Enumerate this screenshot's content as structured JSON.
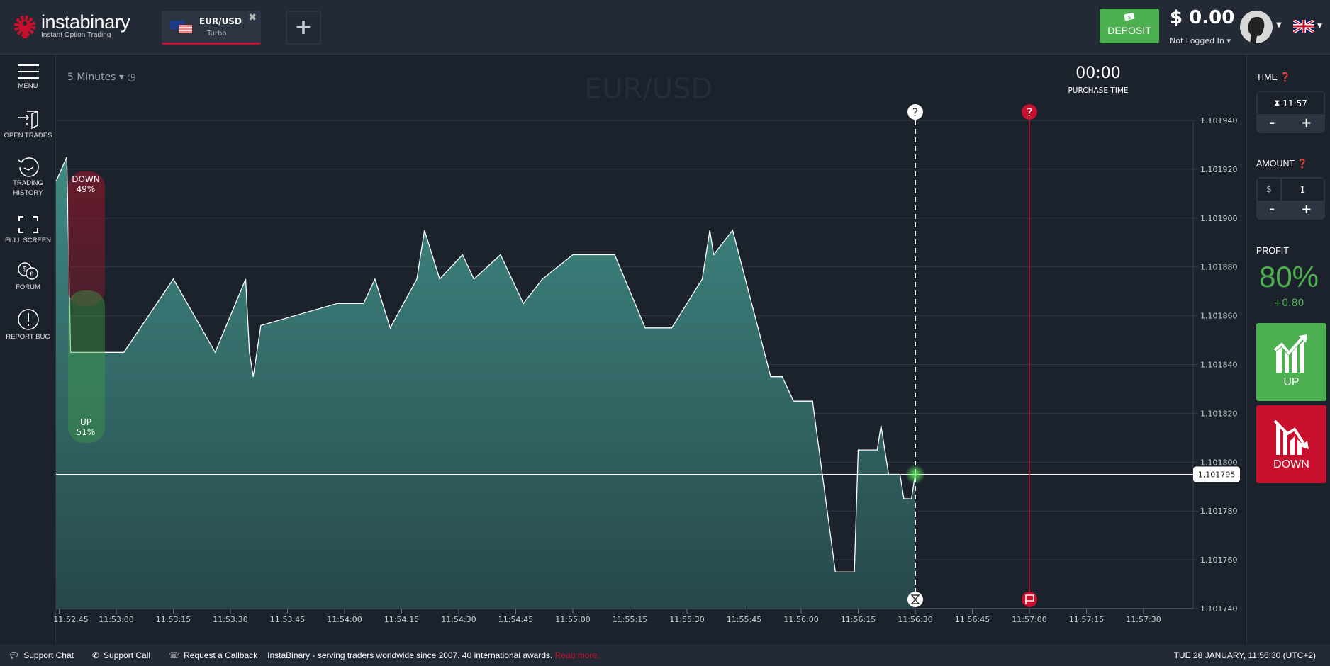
{
  "header": {
    "logo_name": "instabinary",
    "logo_tagline": "Instant Option Trading",
    "tab": {
      "pair": "EUR/USD",
      "type": "Turbo"
    },
    "deposit_label": "DEPOSIT",
    "balance": "$ 0.00",
    "login_status": "Not Logged In"
  },
  "sidebar": {
    "items": [
      {
        "label": "MENU",
        "icon": "hamburger-icon"
      },
      {
        "label": "OPEN TRADES",
        "icon": "door-enter-icon"
      },
      {
        "label": "TRADING HISTORY",
        "icon": "history-clock-icon"
      },
      {
        "label": "FULL SCREEN",
        "icon": "fullscreen-icon"
      },
      {
        "label": "FORUM",
        "icon": "forum-bubbles-icon"
      },
      {
        "label": "REPORT BUG",
        "icon": "exclamation-circle-icon"
      }
    ]
  },
  "chart": {
    "period": "5 Minutes",
    "watermark": "EUR/USD",
    "purchase_time": "00:00",
    "purchase_time_label": "PURCHASE TIME",
    "sentiment": {
      "down_label": "DOWN",
      "down_pct": "49%",
      "up_label": "UP",
      "up_pct": "51%"
    },
    "current_price_label": "1.101795"
  },
  "chart_data": {
    "type": "area",
    "xlabel": "",
    "ylabel": "",
    "ylim": [
      1.10174,
      1.10194
    ],
    "yticks": [
      "1.101940",
      "1.101920",
      "1.101900",
      "1.101880",
      "1.101860",
      "1.101840",
      "1.101820",
      "1.101800",
      "1.101780",
      "1.101760",
      "1.101740"
    ],
    "xticks": [
      "11:52:45",
      "11:53:00",
      "11:53:15",
      "11:53:30",
      "11:53:45",
      "11:54:00",
      "11:54:15",
      "11:54:30",
      "11:54:45",
      "11:55:00",
      "11:55:15",
      "11:55:30",
      "11:55:45",
      "11:56:00",
      "11:56:15",
      "11:56:30",
      "11:56:45",
      "11:57:00",
      "11:57:15",
      "11:57:30"
    ],
    "current_price": 1.101795,
    "purchase_marker_time": "11:56:30",
    "expiry_marker_time": "11:57:00",
    "x": [
      "11:52:44",
      "11:52:47",
      "11:52:48",
      "11:53:02",
      "11:53:15",
      "11:53:26",
      "11:53:34",
      "11:53:35",
      "11:53:36",
      "11:53:38",
      "11:53:58",
      "11:54:05",
      "11:54:08",
      "11:54:12",
      "11:54:19",
      "11:54:21",
      "11:54:25",
      "11:54:31",
      "11:54:34",
      "11:54:41",
      "11:54:47",
      "11:54:52",
      "11:55:00",
      "11:55:11",
      "11:55:19",
      "11:55:26",
      "11:55:34",
      "11:55:36",
      "11:55:37",
      "11:55:42",
      "11:55:52",
      "11:55:55",
      "11:55:58",
      "11:56:03",
      "11:56:09",
      "11:56:14",
      "11:56:15",
      "11:56:20",
      "11:56:21",
      "11:56:23",
      "11:56:26",
      "11:56:27",
      "11:56:29",
      "11:56:30"
    ],
    "y": [
      1.101915,
      1.101925,
      1.101845,
      1.101845,
      1.101875,
      1.101845,
      1.101875,
      1.101845,
      1.101835,
      1.101856,
      1.101865,
      1.101865,
      1.101875,
      1.101855,
      1.101875,
      1.101895,
      1.101875,
      1.101885,
      1.101875,
      1.101885,
      1.101865,
      1.101875,
      1.101885,
      1.101885,
      1.101855,
      1.101855,
      1.101875,
      1.101895,
      1.101885,
      1.101895,
      1.101835,
      1.101835,
      1.101825,
      1.101825,
      1.101755,
      1.101755,
      1.101805,
      1.101805,
      1.101815,
      1.101795,
      1.101795,
      1.101785,
      1.101785,
      1.101795
    ],
    "colors": {
      "area": "#3d7f7a",
      "line": "#ffffff",
      "purchase_line": "#ffffff",
      "expiry_line": "#c8102e"
    }
  },
  "right_panel": {
    "time_label": "TIME",
    "time_value": "11:57",
    "amount_label": "AMOUNT",
    "currency": "$",
    "amount_value": "1",
    "minus": "-",
    "plus": "+",
    "profit_label": "PROFIT",
    "profit_pct": "80%",
    "profit_value": "+0.80",
    "up_label": "UP",
    "down_label": "DOWN"
  },
  "footer": {
    "support_chat": "Support Chat",
    "support_call": "Support Call",
    "callback": "Request a Callback",
    "tagline": "InstaBinary - serving traders worldwide since 2007. 40 international awards.",
    "read_more": "Read more.",
    "datetime": "TUE 28 JANUARY, 11:56:30 (UTC+2)"
  },
  "colors": {
    "green": "#4caf50",
    "red": "#c8102e",
    "bg": "#1c222c",
    "header": "#232a36"
  }
}
